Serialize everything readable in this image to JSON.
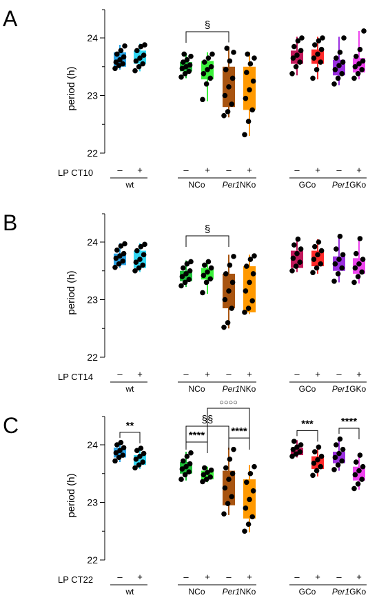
{
  "chart_data": [
    {
      "type": "box",
      "panel_label": "A",
      "ylabel": "period (h)",
      "ylim": [
        22,
        24.5
      ],
      "yticks": [
        "22",
        "23",
        "24"
      ],
      "lp_label": "LP CT10",
      "pm_labels": [
        "–",
        "+"
      ],
      "groups": [
        {
          "label": "wt",
          "series": [
            {
              "color": "#2aa3e6",
              "q1": 23.5,
              "median": 23.55,
              "q3": 23.75,
              "min": 23.45,
              "max": 23.88,
              "points": [
                23.47,
                23.52,
                23.55,
                23.58,
                23.62,
                23.67,
                23.72,
                23.78,
                23.86
              ]
            },
            {
              "color": "#33d6f2",
              "q1": 23.55,
              "median": 23.62,
              "q3": 23.78,
              "min": 23.42,
              "max": 23.9,
              "points": [
                23.43,
                23.5,
                23.55,
                23.6,
                23.65,
                23.7,
                23.78,
                23.85,
                23.88
              ]
            }
          ]
        },
        {
          "label": "NCo",
          "series": [
            {
              "color": "#1fbf3a",
              "q1": 23.42,
              "median": 23.5,
              "q3": 23.58,
              "min": 23.3,
              "max": 23.72,
              "points": [
                23.32,
                23.38,
                23.42,
                23.47,
                23.5,
                23.53,
                23.58,
                23.62,
                23.68,
                23.72
              ]
            },
            {
              "color": "#3af03a",
              "q1": 23.28,
              "median": 23.45,
              "q3": 23.6,
              "min": 22.9,
              "max": 23.75,
              "points": [
                22.93,
                23.2,
                23.3,
                23.38,
                23.45,
                23.5,
                23.58,
                23.65,
                23.72
              ]
            }
          ]
        },
        {
          "label_pre": "Per1",
          "label": "NKo",
          "series": [
            {
              "color": "#a85410",
              "q1": 22.8,
              "median": 23.2,
              "q3": 23.5,
              "min": 22.62,
              "max": 23.85,
              "points": [
                22.65,
                22.72,
                22.85,
                23.0,
                23.15,
                23.3,
                23.45,
                23.6,
                23.75,
                23.82
              ]
            },
            {
              "color": "#ff9900",
              "q1": 22.75,
              "median": 23.2,
              "q3": 23.5,
              "min": 22.3,
              "max": 23.75,
              "points": [
                22.32,
                22.55,
                22.75,
                22.95,
                23.1,
                23.25,
                23.4,
                23.55,
                23.65,
                23.72
              ]
            }
          ]
        },
        {
          "label": "GCo",
          "series": [
            {
              "color": "#c2185b",
              "q1": 23.55,
              "median": 23.65,
              "q3": 23.78,
              "min": 23.35,
              "max": 24.02,
              "points": [
                23.38,
                23.5,
                23.58,
                23.65,
                23.7,
                23.78,
                23.85,
                23.95,
                24.0
              ]
            },
            {
              "color": "#ff2a2a",
              "q1": 23.55,
              "median": 23.7,
              "q3": 23.8,
              "min": 23.28,
              "max": 24.02,
              "points": [
                23.3,
                23.45,
                23.58,
                23.65,
                23.72,
                23.8,
                23.88,
                23.95,
                24.0
              ]
            }
          ]
        },
        {
          "label_pre": "Per1",
          "label": "GKo",
          "series": [
            {
              "color": "#9b30e0",
              "q1": 23.35,
              "median": 23.52,
              "q3": 23.62,
              "min": 23.18,
              "max": 24.02,
              "points": [
                23.2,
                23.3,
                23.38,
                23.45,
                23.52,
                23.58,
                23.65,
                23.75,
                24.0
              ]
            },
            {
              "color": "#ee44ee",
              "q1": 23.4,
              "median": 23.52,
              "q3": 23.65,
              "min": 23.28,
              "max": 24.12,
              "points": [
                23.3,
                23.38,
                23.45,
                23.5,
                23.55,
                23.6,
                23.68,
                23.8,
                24.12
              ]
            }
          ]
        }
      ],
      "annotations": [
        {
          "text": "§",
          "from": [
            1,
            0
          ],
          "to": [
            2,
            0
          ],
          "level": 0
        }
      ]
    },
    {
      "type": "box",
      "panel_label": "B",
      "ylabel": "period (h)",
      "ylim": [
        22,
        24.5
      ],
      "yticks": [
        "22",
        "23",
        "24"
      ],
      "lp_label": "LP CT14",
      "pm_labels": [
        "–",
        "+"
      ],
      "groups": [
        {
          "label": "wt",
          "series": [
            {
              "color": "#2aa3e6",
              "q1": 23.6,
              "median": 23.72,
              "q3": 23.8,
              "min": 23.55,
              "max": 23.98,
              "points": [
                23.56,
                23.62,
                23.67,
                23.72,
                23.76,
                23.8,
                23.86,
                23.93,
                23.97
              ]
            },
            {
              "color": "#33d6f2",
              "q1": 23.55,
              "median": 23.65,
              "q3": 23.85,
              "min": 23.48,
              "max": 23.98,
              "points": [
                23.5,
                23.55,
                23.6,
                23.65,
                23.7,
                23.78,
                23.85,
                23.92,
                23.96
              ]
            }
          ]
        },
        {
          "label": "NCo",
          "series": [
            {
              "color": "#1fbf3a",
              "q1": 23.32,
              "median": 23.42,
              "q3": 23.5,
              "min": 23.22,
              "max": 23.68,
              "points": [
                23.24,
                23.3,
                23.35,
                23.4,
                23.45,
                23.5,
                23.55,
                23.62,
                23.66
              ]
            },
            {
              "color": "#3af03a",
              "q1": 23.35,
              "median": 23.42,
              "q3": 23.55,
              "min": 23.1,
              "max": 23.68,
              "points": [
                23.12,
                23.3,
                23.36,
                23.42,
                23.48,
                23.55,
                23.6,
                23.66
              ]
            }
          ]
        },
        {
          "label_pre": "Per1",
          "label": "NKo",
          "series": [
            {
              "color": "#a85410",
              "q1": 22.85,
              "median": 23.2,
              "q3": 23.45,
              "min": 22.5,
              "max": 23.78,
              "points": [
                22.52,
                22.6,
                22.85,
                23.0,
                23.15,
                23.3,
                23.45,
                23.6,
                23.75
              ]
            },
            {
              "color": "#ff9900",
              "q1": 22.78,
              "median": 23.1,
              "q3": 23.58,
              "min": 22.75,
              "max": 23.78,
              "points": [
                22.78,
                22.85,
                22.98,
                23.15,
                23.3,
                23.45,
                23.58,
                23.7,
                23.76
              ]
            }
          ]
        },
        {
          "label": "GCo",
          "series": [
            {
              "color": "#c2185b",
              "q1": 23.55,
              "median": 23.72,
              "q3": 23.85,
              "min": 23.48,
              "max": 24.08,
              "points": [
                23.5,
                23.58,
                23.65,
                23.72,
                23.8,
                23.88,
                23.95,
                24.05
              ]
            },
            {
              "color": "#ff2a2a",
              "q1": 23.58,
              "median": 23.72,
              "q3": 23.85,
              "min": 23.45,
              "max": 24.05,
              "points": [
                23.47,
                23.55,
                23.62,
                23.7,
                23.78,
                23.85,
                23.92,
                24.0
              ]
            }
          ]
        },
        {
          "label_pre": "Per1",
          "label": "GKo",
          "series": [
            {
              "color": "#9b30e0",
              "q1": 23.5,
              "median": 23.62,
              "q3": 23.75,
              "min": 23.3,
              "max": 24.12,
              "points": [
                23.32,
                23.45,
                23.55,
                23.62,
                23.7,
                23.78,
                23.88,
                24.1
              ]
            },
            {
              "color": "#ee44ee",
              "q1": 23.45,
              "median": 23.58,
              "q3": 23.72,
              "min": 23.28,
              "max": 24.08,
              "points": [
                23.3,
                23.4,
                23.48,
                23.55,
                23.62,
                23.7,
                23.8,
                24.06
              ]
            }
          ]
        }
      ],
      "annotations": [
        {
          "text": "§",
          "from": [
            1,
            0
          ],
          "to": [
            2,
            0
          ],
          "level": 0
        }
      ]
    },
    {
      "type": "box",
      "panel_label": "C",
      "ylabel": "period (h)",
      "ylim": [
        22,
        24.5
      ],
      "yticks": [
        "22",
        "23",
        "24"
      ],
      "lp_label": "LP CT22",
      "pm_labels": [
        "–",
        "+"
      ],
      "groups": [
        {
          "label": "wt",
          "series": [
            {
              "color": "#2aa3e6",
              "q1": 23.78,
              "median": 23.85,
              "q3": 23.95,
              "min": 23.7,
              "max": 24.05,
              "points": [
                23.72,
                23.78,
                23.82,
                23.86,
                23.9,
                23.95,
                24.0,
                24.04
              ]
            },
            {
              "color": "#33d6f2",
              "q1": 23.65,
              "median": 23.75,
              "q3": 23.82,
              "min": 23.58,
              "max": 23.95,
              "points": [
                23.6,
                23.65,
                23.7,
                23.75,
                23.8,
                23.85,
                23.9,
                23.94
              ]
            }
          ]
        },
        {
          "label": "NCo",
          "series": [
            {
              "color": "#1fbf3a",
              "q1": 23.5,
              "median": 23.6,
              "q3": 23.7,
              "min": 23.38,
              "max": 23.88,
              "points": [
                23.4,
                23.48,
                23.53,
                23.58,
                23.62,
                23.67,
                23.72,
                23.8,
                23.86
              ]
            },
            {
              "color": "#3af03a",
              "q1": 23.4,
              "median": 23.48,
              "q3": 23.55,
              "min": 23.35,
              "max": 23.62,
              "points": [
                23.36,
                23.4,
                23.44,
                23.48,
                23.52,
                23.56,
                23.6
              ]
            }
          ]
        },
        {
          "label_pre": "Per1",
          "label": "NKo",
          "series": [
            {
              "color": "#a85410",
              "q1": 22.95,
              "median": 23.35,
              "q3": 23.55,
              "min": 22.78,
              "max": 23.95,
              "points": [
                22.8,
                22.98,
                23.1,
                23.25,
                23.4,
                23.5,
                23.6,
                23.75,
                23.92
              ]
            },
            {
              "color": "#ff9900",
              "q1": 22.72,
              "median": 23.05,
              "q3": 23.4,
              "min": 22.48,
              "max": 23.65,
              "points": [
                22.5,
                22.62,
                22.75,
                22.9,
                23.05,
                23.2,
                23.35,
                23.5,
                23.62
              ]
            }
          ]
        },
        {
          "label": "GCo",
          "series": [
            {
              "color": "#c2185b",
              "q1": 23.82,
              "median": 23.88,
              "q3": 23.95,
              "min": 23.78,
              "max": 24.08,
              "points": [
                23.8,
                23.84,
                23.88,
                23.92,
                23.96,
                24.0,
                24.06
              ]
            },
            {
              "color": "#ff2a2a",
              "q1": 23.58,
              "median": 23.7,
              "q3": 23.8,
              "min": 23.45,
              "max": 23.98,
              "points": [
                23.47,
                23.55,
                23.62,
                23.68,
                23.74,
                23.8,
                23.88,
                23.96
              ]
            }
          ]
        },
        {
          "label_pre": "Per1",
          "label": "GKo",
          "series": [
            {
              "color": "#9b30e0",
              "q1": 23.68,
              "median": 23.78,
              "q3": 23.88,
              "min": 23.55,
              "max": 24.12,
              "points": [
                23.57,
                23.65,
                23.72,
                23.78,
                23.85,
                23.92,
                24.0,
                24.1
              ]
            },
            {
              "color": "#ee44ee",
              "q1": 23.38,
              "median": 23.48,
              "q3": 23.62,
              "min": 23.22,
              "max": 23.85,
              "points": [
                23.24,
                23.32,
                23.4,
                23.48,
                23.55,
                23.62,
                23.7,
                23.82
              ]
            }
          ]
        }
      ],
      "annotations": [
        {
          "text": "**",
          "from": [
            0,
            0
          ],
          "to": [
            0,
            1
          ],
          "level": 0
        },
        {
          "text": "****",
          "from": [
            1,
            0
          ],
          "to": [
            1,
            1
          ],
          "level": 0
        },
        {
          "text": "****",
          "from": [
            2,
            0
          ],
          "to": [
            2,
            1
          ],
          "level": 0
        },
        {
          "text": "§§",
          "from": [
            1,
            0
          ],
          "to": [
            2,
            0
          ],
          "level": 1
        },
        {
          "text": "○○○○",
          "from": [
            1,
            1
          ],
          "to": [
            2,
            1
          ],
          "level": 2
        },
        {
          "text": "***",
          "from": [
            3,
            0
          ],
          "to": [
            3,
            1
          ],
          "level": 0
        },
        {
          "text": "****",
          "from": [
            4,
            0
          ],
          "to": [
            4,
            1
          ],
          "level": 0
        }
      ]
    }
  ]
}
